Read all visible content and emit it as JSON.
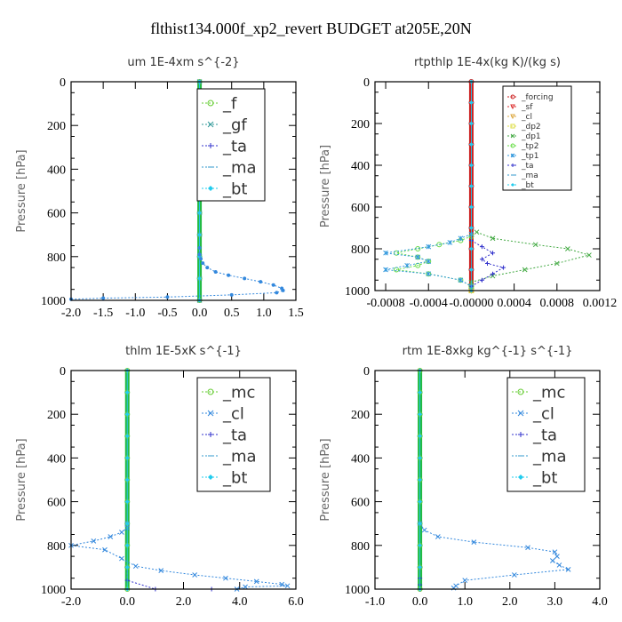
{
  "figure_title": "flthist134.000f_xp2_revert  BUDGET at205E,20N",
  "colors": {
    "f": "#66cc33",
    "gf": "#339999",
    "ta": "#3333cc",
    "ma": "#3399cc",
    "bt": "#22ccee",
    "mc": "#66cc33",
    "cl": "#3388dd",
    "forcing": "#cc2222",
    "sf": "#dd3333",
    "cl_rt": "#ddaa44",
    "dp2": "#dddd44",
    "dp1": "#44aa44",
    "tp2": "#66dd44",
    "tp1": "#3399dd",
    "zero_band": "#22bb44"
  },
  "chart_data": [
    {
      "type": "line",
      "title": "um  1E-4xm s^{-2}",
      "xlabel": "",
      "ylabel": "Pressure [hPa]",
      "xlim": [
        -2.0,
        1.5
      ],
      "ylim": [
        0,
        1000
      ],
      "y_inverted": true,
      "xticks": [
        "-2.0",
        "-1.5",
        "-1.0",
        "-0.5",
        "0.0",
        "0.5",
        "1.0",
        "1.5"
      ],
      "xtick_values": [
        -2.0,
        -1.5,
        -1.0,
        -0.5,
        0.0,
        0.5,
        1.0,
        1.5
      ],
      "yticks": [
        "0",
        "200",
        "400",
        "600",
        "800",
        "1000"
      ],
      "legend_position": "top-right",
      "series": [
        {
          "name": "_f",
          "color_key": "f",
          "marker": "circle",
          "x": [
            0,
            0,
            0,
            0,
            0,
            0,
            0,
            0,
            0,
            0,
            0
          ],
          "y": [
            0,
            100,
            200,
            300,
            400,
            500,
            600,
            700,
            800,
            900,
            1000
          ]
        },
        {
          "name": "_gf",
          "color_key": "gf",
          "marker": "x",
          "x": [
            0,
            0,
            0,
            0,
            0,
            0,
            0,
            0,
            0,
            0,
            0
          ],
          "y": [
            0,
            100,
            200,
            300,
            400,
            500,
            600,
            700,
            800,
            900,
            1000
          ]
        },
        {
          "name": "_ta",
          "color_key": "ta",
          "marker": "plus",
          "x": [
            0,
            0,
            0,
            0,
            0,
            0,
            0,
            0,
            0
          ],
          "y": [
            0,
            100,
            200,
            300,
            400,
            500,
            600,
            700,
            800
          ]
        },
        {
          "name": "_ma",
          "color_key": "ma",
          "marker": "dash",
          "x": [
            0,
            0,
            0,
            0,
            0,
            0,
            0,
            0,
            0
          ],
          "y": [
            0,
            100,
            200,
            300,
            400,
            500,
            600,
            700,
            800
          ]
        },
        {
          "name": "_bt",
          "color_key": "bt",
          "marker": "diamond",
          "x": [
            0,
            0,
            0,
            0,
            0,
            0,
            0,
            0,
            0,
            0,
            0
          ],
          "y": [
            0,
            100,
            200,
            300,
            400,
            500,
            600,
            700,
            800,
            900,
            1000
          ]
        },
        {
          "name": "",
          "color_key": "cl",
          "marker": "dot",
          "x": [
            0,
            0,
            0.02,
            0.05,
            0.12,
            0.25,
            0.45,
            0.7,
            0.95,
            1.15,
            1.28,
            1.3,
            1.2,
            0.5,
            -0.5,
            -1.5,
            -2.0
          ],
          "y": [
            760,
            790,
            810,
            830,
            850,
            870,
            885,
            900,
            915,
            930,
            945,
            955,
            965,
            975,
            985,
            990,
            995
          ]
        }
      ]
    },
    {
      "type": "line",
      "title": "rtpthlp  1E-4x(kg K)/(kg s)",
      "xlabel": "",
      "ylabel": "Pressure [hPa]",
      "xlim": [
        -0.0009,
        0.0012
      ],
      "ylim": [
        0,
        1000
      ],
      "y_inverted": true,
      "xticks": [
        "-0.0008",
        "-0.0004",
        "-0.00000",
        "0.0004",
        "0.0008",
        "0.0012"
      ],
      "xtick_values": [
        -0.0008,
        -0.0004,
        0.0,
        0.0004,
        0.0008,
        0.0012
      ],
      "yticks": [
        "0",
        "200",
        "400",
        "600",
        "800",
        "1000"
      ],
      "legend_position": "top-right",
      "series": [
        {
          "name": "_forcing",
          "color_key": "forcing",
          "marker": "circle",
          "x": [
            0,
            0,
            0,
            0,
            0,
            0,
            0,
            0,
            0,
            0,
            0
          ],
          "y": [
            0,
            100,
            200,
            300,
            400,
            500,
            600,
            700,
            800,
            900,
            1000
          ]
        },
        {
          "name": "_sf",
          "color_key": "sf",
          "marker": "triangle",
          "x": [
            0,
            0
          ],
          "y": [
            980,
            1000
          ]
        },
        {
          "name": "_cl",
          "color_key": "cl_rt",
          "marker": "triangle",
          "x": [
            0,
            0
          ],
          "y": [
            990,
            1000
          ]
        },
        {
          "name": "_dp2",
          "color_key": "dp2",
          "marker": "square",
          "x": [
            0,
            0
          ],
          "y": [
            990,
            1000
          ]
        },
        {
          "name": "_dp1",
          "color_key": "dp1",
          "marker": "x",
          "x": [
            5e-05,
            0.0002,
            0.0006,
            0.0009,
            0.0011,
            0.0008,
            0.0005,
            0.0002,
            0.0
          ],
          "y": [
            720,
            750,
            780,
            800,
            830,
            870,
            900,
            930,
            960
          ]
        },
        {
          "name": "_tp2",
          "color_key": "tp2",
          "marker": "circle",
          "x": [
            0.0,
            -0.0001,
            -0.0003,
            -0.0005,
            -0.0007,
            -0.0005,
            -0.0004,
            -0.0005,
            -0.0007,
            -0.0004,
            -0.0001,
            0.0
          ],
          "y": [
            740,
            760,
            780,
            800,
            820,
            840,
            860,
            880,
            900,
            920,
            950,
            980
          ]
        },
        {
          "name": "_tp1",
          "color_key": "tp1",
          "marker": "star",
          "x": [
            0.0,
            -0.0001,
            -0.0002,
            -0.0004,
            -0.0008,
            -0.0005,
            -0.0004,
            -0.0006,
            -0.0008,
            -0.0004,
            -0.0001,
            0.0
          ],
          "y": [
            730,
            750,
            770,
            790,
            820,
            840,
            860,
            880,
            900,
            920,
            950,
            980
          ]
        },
        {
          "name": "_ta",
          "color_key": "ta",
          "marker": "plus",
          "x": [
            0.0,
            0.0001,
            0.0002,
            0.0001,
            0.00015,
            0.0003,
            0.0002,
            0.0001,
            0.0
          ],
          "y": [
            760,
            790,
            820,
            850,
            870,
            890,
            920,
            950,
            980
          ]
        },
        {
          "name": "_ma",
          "color_key": "ma",
          "marker": "dash",
          "x": [
            0,
            0,
            0,
            0,
            0,
            0,
            0,
            0,
            0
          ],
          "y": [
            0,
            100,
            200,
            300,
            400,
            500,
            600,
            700,
            800
          ]
        },
        {
          "name": "_bt",
          "color_key": "bt",
          "marker": "diamond",
          "x": [
            0,
            0,
            0,
            0,
            0,
            0,
            0,
            0,
            0,
            0,
            0
          ],
          "y": [
            0,
            100,
            200,
            300,
            400,
            500,
            600,
            700,
            800,
            900,
            1000
          ]
        }
      ]
    },
    {
      "type": "line",
      "title": "thlm  1E-5xK s^{-1}",
      "xlabel": "",
      "ylabel": "Pressure [hPa]",
      "xlim": [
        -2.0,
        6.0
      ],
      "ylim": [
        0,
        1000
      ],
      "y_inverted": true,
      "xticks": [
        "-2.0",
        "0.0",
        "2.0",
        "4.0",
        "6.0"
      ],
      "xtick_values": [
        -2.0,
        0.0,
        2.0,
        4.0,
        6.0
      ],
      "yticks": [
        "0",
        "200",
        "400",
        "600",
        "800",
        "1000"
      ],
      "legend_position": "top-right",
      "series": [
        {
          "name": "_mc",
          "color_key": "mc",
          "marker": "circle",
          "x": [
            0,
            0,
            0,
            0,
            0,
            0,
            0,
            0,
            0,
            0,
            0
          ],
          "y": [
            0,
            100,
            200,
            300,
            400,
            500,
            600,
            700,
            800,
            900,
            1000
          ]
        },
        {
          "name": "_cl",
          "color_key": "cl",
          "marker": "x",
          "x": [
            0,
            0,
            -0.2,
            -0.6,
            -1.2,
            -2.0,
            -0.8,
            -0.2,
            0.3,
            1.2,
            2.4,
            3.5,
            4.6,
            5.5,
            5.7,
            4.2,
            3.9
          ],
          "y": [
            700,
            720,
            740,
            760,
            780,
            800,
            820,
            860,
            895,
            915,
            935,
            950,
            965,
            978,
            985,
            990,
            1000
          ]
        },
        {
          "name": "_ta",
          "color_key": "ta",
          "marker": "plus",
          "x": [
            0,
            0,
            1.0,
            3.0
          ],
          "y": [
            900,
            960,
            1000,
            1000
          ]
        },
        {
          "name": "_ma",
          "color_key": "ma",
          "marker": "dash",
          "x": [
            0,
            0,
            0,
            0,
            0,
            0,
            0,
            0,
            0
          ],
          "y": [
            0,
            100,
            200,
            300,
            400,
            500,
            600,
            700,
            800
          ]
        },
        {
          "name": "_bt",
          "color_key": "bt",
          "marker": "diamond",
          "x": [
            0,
            0,
            0,
            0,
            0,
            0,
            0,
            0,
            0,
            0,
            0
          ],
          "y": [
            0,
            100,
            200,
            300,
            400,
            500,
            600,
            700,
            800,
            900,
            1000
          ]
        }
      ]
    },
    {
      "type": "line",
      "title": "rtm  1E-8xkg kg^{-1} s^{-1}",
      "xlabel": "",
      "ylabel": "Pressure [hPa]",
      "xlim": [
        -1.0,
        4.0
      ],
      "ylim": [
        0,
        1000
      ],
      "y_inverted": true,
      "xticks": [
        "-1.0",
        "0.0",
        "1.0",
        "2.0",
        "3.0",
        "4.0"
      ],
      "xtick_values": [
        -1.0,
        0.0,
        1.0,
        2.0,
        3.0,
        4.0
      ],
      "yticks": [
        "0",
        "200",
        "400",
        "600",
        "800",
        "1000"
      ],
      "legend_position": "top-right",
      "series": [
        {
          "name": "_mc",
          "color_key": "mc",
          "marker": "circle",
          "x": [
            0,
            0,
            0,
            0,
            0,
            0,
            0,
            0,
            0,
            0,
            0
          ],
          "y": [
            0,
            100,
            200,
            300,
            400,
            500,
            600,
            700,
            800,
            900,
            1000
          ]
        },
        {
          "name": "_cl",
          "color_key": "cl",
          "marker": "x",
          "x": [
            0,
            0.1,
            0.4,
            1.2,
            2.4,
            3.0,
            3.05,
            2.95,
            3.1,
            3.3,
            2.1,
            1.0,
            0.8,
            0.75
          ],
          "y": [
            700,
            730,
            760,
            785,
            810,
            830,
            850,
            870,
            890,
            910,
            935,
            960,
            985,
            995
          ]
        },
        {
          "name": "_ta",
          "color_key": "ta",
          "marker": "plus",
          "x": [
            0,
            0,
            0,
            0
          ],
          "y": [
            900,
            950,
            980,
            1000
          ]
        },
        {
          "name": "_ma",
          "color_key": "ma",
          "marker": "dash",
          "x": [
            0,
            0,
            0,
            0,
            0,
            0,
            0,
            0,
            0
          ],
          "y": [
            0,
            100,
            200,
            300,
            400,
            500,
            600,
            700,
            800
          ]
        },
        {
          "name": "_bt",
          "color_key": "bt",
          "marker": "diamond",
          "x": [
            0,
            0,
            0,
            0,
            0,
            0,
            0,
            0,
            0,
            0,
            0
          ],
          "y": [
            0,
            100,
            200,
            300,
            400,
            500,
            600,
            700,
            800,
            900,
            1000
          ]
        }
      ]
    }
  ]
}
